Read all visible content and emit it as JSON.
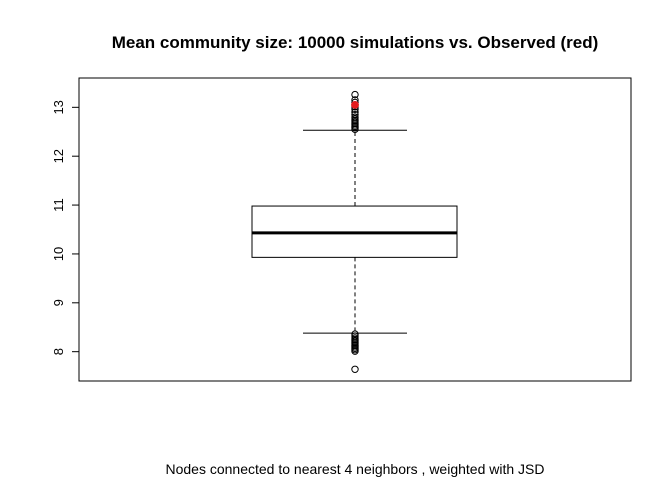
{
  "chart_data": {
    "type": "boxplot",
    "title": "Mean community size: 10000 simulations vs. Observed (red)",
    "xlabel": "Nodes connected to nearest 4 neighbors , weighted with JSD",
    "ylabel": "",
    "ylim": [
      7.4,
      13.6
    ],
    "yticks": [
      "8",
      "9",
      "10",
      "11",
      "12",
      "13"
    ],
    "grid": false,
    "n_simulations": 10000,
    "box": {
      "min_whisker": 8.38,
      "q1": 9.93,
      "median": 10.43,
      "q3": 10.98,
      "max_whisker": 12.53
    },
    "outliers_low": [
      8.36,
      8.32,
      8.28,
      8.25,
      8.22,
      8.19,
      8.16,
      8.13,
      8.1,
      8.07,
      8.04,
      8.01,
      7.64
    ],
    "outliers_high": [
      12.55,
      12.58,
      12.61,
      12.64,
      12.67,
      12.7,
      12.73,
      12.76,
      12.8,
      12.85,
      12.9,
      12.96,
      13.01,
      13.05,
      13.1,
      13.15,
      13.26
    ],
    "observed": {
      "value": 13.05,
      "color": "#e31a1c"
    },
    "colors": {
      "box": "#000000",
      "observed": "#e31a1c"
    }
  }
}
